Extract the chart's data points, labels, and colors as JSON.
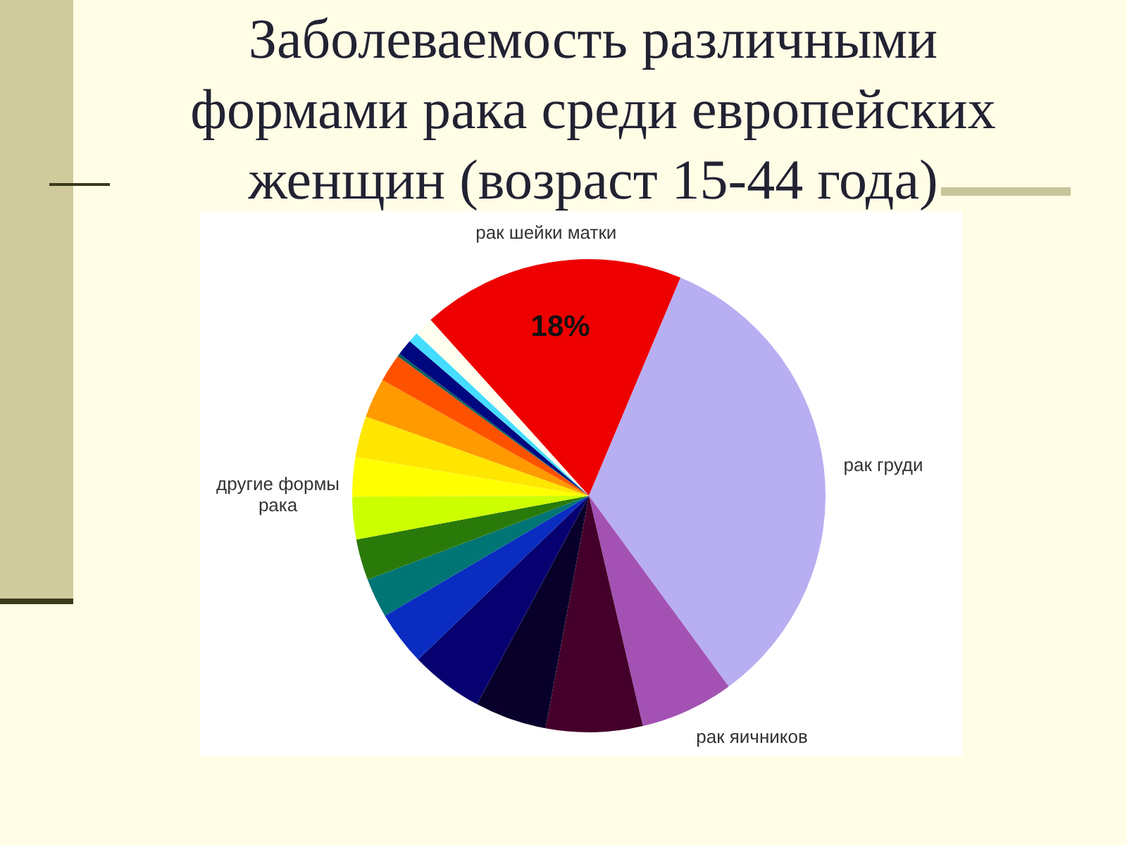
{
  "chart_data": {
    "type": "pie",
    "title": "Заболеваемость различными формами рака среди европейских женщин (возраст 15-44 года)",
    "categories": [
      "рак шейки матки",
      "рак груди",
      "рак яичников",
      null,
      null,
      null,
      null,
      null,
      null,
      null,
      null,
      null,
      null,
      null,
      null,
      null,
      null,
      null
    ],
    "values": [
      18,
      33.6,
      6.4,
      6.6,
      4.9,
      5.0,
      3.7,
      2.7,
      2.8,
      2.9,
      2.7,
      2.8,
      2.7,
      1.9,
      0.2,
      1.1,
      0.7,
      1.3
    ],
    "colors": [
      "#ee0000",
      "#b8aef2",
      "#a352b3",
      "#44002a",
      "#08002a",
      "#060070",
      "#0a2cc0",
      "#007575",
      "#2a7a0a",
      "#ccff00",
      "#ffff00",
      "#ffe600",
      "#ff9a00",
      "#ff5200",
      "#006060",
      "#000880",
      "#44ddff",
      "#fffff0"
    ],
    "value_labels": [
      "18%",
      null,
      null,
      null,
      null,
      null,
      null,
      null,
      null,
      null,
      null,
      null,
      null,
      null,
      null,
      null,
      null,
      null
    ],
    "annotations": [
      "другие формы рака"
    ],
    "legend": false
  }
}
